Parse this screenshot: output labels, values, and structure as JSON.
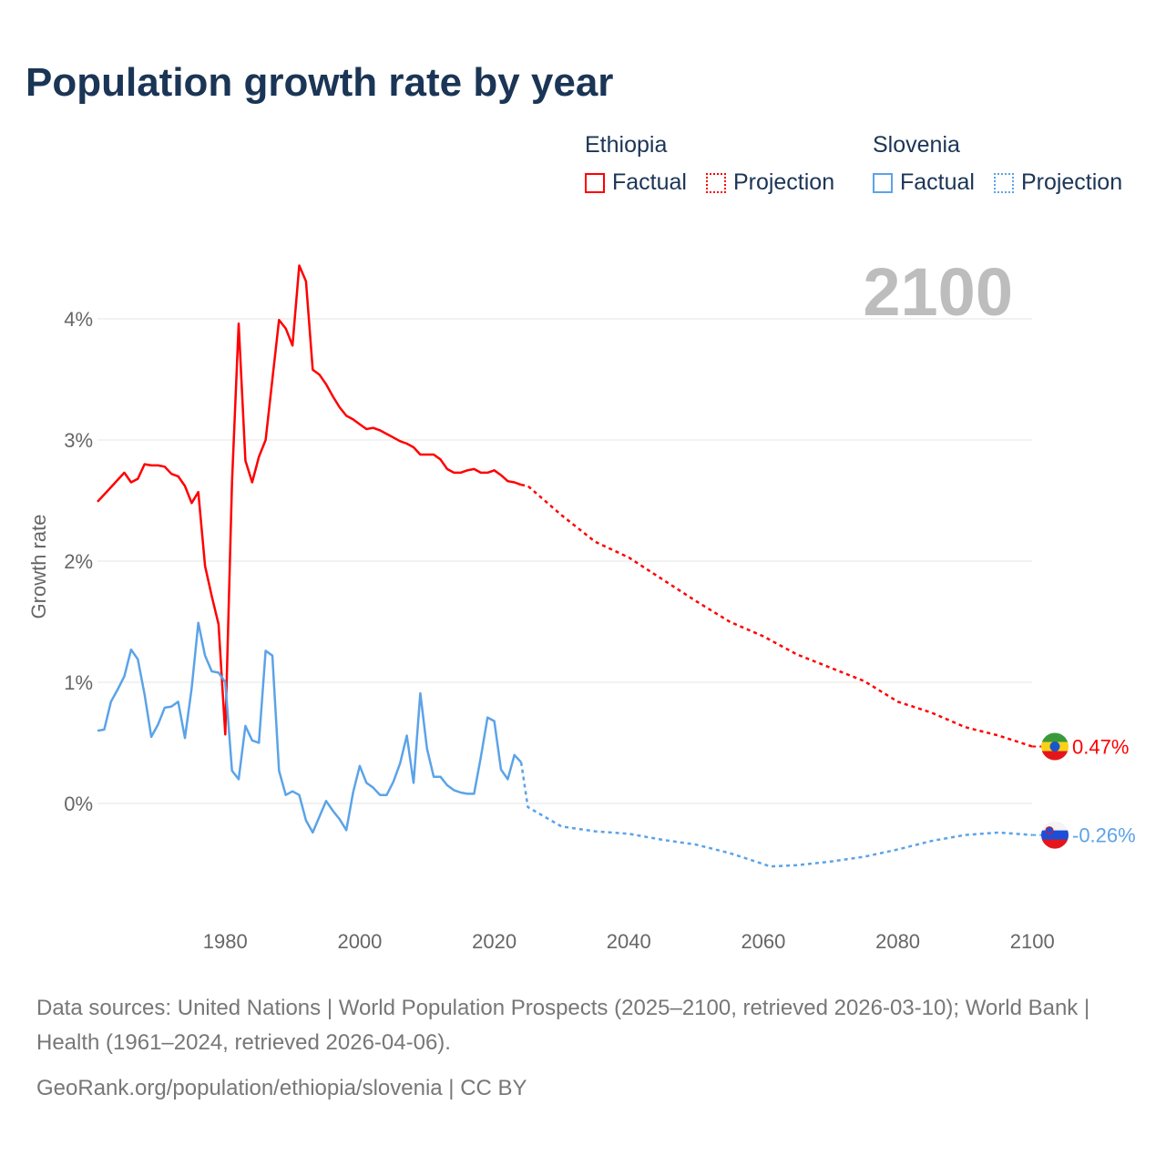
{
  "title": "Population growth rate by year",
  "legend": {
    "groups": [
      {
        "name": "Ethiopia",
        "color": "#ff0000",
        "factual": "Factual",
        "projection": "Projection"
      },
      {
        "name": "Slovenia",
        "color": "#5ba3e8",
        "factual": "Factual",
        "projection": "Projection"
      }
    ]
  },
  "current_year": "2100",
  "footer": {
    "sources": "Data sources: United Nations | World Population Prospects (2025–2100, retrieved 2026-03-10); World Bank | Health (1961–2024, retrieved 2026-04-06).",
    "link": "GeoRank.org/population/ethiopia/slovenia | CC BY"
  },
  "chart_data": {
    "type": "line",
    "title": "Population growth rate by year",
    "xlabel": "",
    "ylabel": "Growth rate",
    "xlim": [
      1961,
      2100
    ],
    "ylim": [
      -0.95,
      4.5
    ],
    "x_ticks": [
      1980,
      2000,
      2020,
      2040,
      2060,
      2080,
      2100
    ],
    "y_ticks": [
      0,
      1,
      2,
      3,
      4
    ],
    "y_tick_labels": [
      "0%",
      "1%",
      "2%",
      "3%",
      "4%"
    ],
    "grid": true,
    "legend_position": "top-right",
    "series": [
      {
        "name": "Ethiopia",
        "color": "#ff0000",
        "end_label": "0.47%",
        "factual": {
          "x": [
            1961,
            1962,
            1963,
            1964,
            1965,
            1966,
            1967,
            1968,
            1969,
            1970,
            1971,
            1972,
            1973,
            1974,
            1975,
            1976,
            1977,
            1978,
            1979,
            1980,
            1981,
            1982,
            1983,
            1984,
            1985,
            1986,
            1987,
            1988,
            1989,
            1990,
            1991,
            1992,
            1993,
            1994,
            1995,
            1996,
            1997,
            1998,
            1999,
            2000,
            2001,
            2002,
            2003,
            2004,
            2005,
            2006,
            2007,
            2008,
            2009,
            2010,
            2011,
            2012,
            2013,
            2014,
            2015,
            2016,
            2017,
            2018,
            2019,
            2020,
            2021,
            2022,
            2023,
            2024
          ],
          "y": [
            2.49,
            2.55,
            2.61,
            2.67,
            2.73,
            2.65,
            2.68,
            2.8,
            2.79,
            2.79,
            2.78,
            2.72,
            2.7,
            2.62,
            2.48,
            2.57,
            1.96,
            1.71,
            1.48,
            0.57,
            2.65,
            3.96,
            2.83,
            2.65,
            2.86,
            3.0,
            3.5,
            3.99,
            3.92,
            3.78,
            4.44,
            4.31,
            3.58,
            3.54,
            3.46,
            3.36,
            3.27,
            3.2,
            3.17,
            3.13,
            3.09,
            3.1,
            3.08,
            3.05,
            3.02,
            2.99,
            2.97,
            2.94,
            2.88,
            2.88,
            2.88,
            2.84,
            2.76,
            2.73,
            2.73,
            2.75,
            2.76,
            2.73,
            2.73,
            2.75,
            2.71,
            2.66,
            2.65,
            2.63
          ]
        },
        "projection": {
          "x": [
            2024,
            2025,
            2030,
            2035,
            2040,
            2045,
            2050,
            2055,
            2060,
            2065,
            2070,
            2075,
            2080,
            2085,
            2090,
            2095,
            2100
          ],
          "y": [
            2.63,
            2.62,
            2.38,
            2.16,
            2.03,
            1.85,
            1.67,
            1.5,
            1.38,
            1.23,
            1.12,
            1.01,
            0.84,
            0.75,
            0.63,
            0.56,
            0.47
          ]
        }
      },
      {
        "name": "Slovenia",
        "color": "#5ba3e8",
        "end_label": "-0.26%",
        "factual": {
          "x": [
            1961,
            1962,
            1963,
            1964,
            1965,
            1966,
            1967,
            1968,
            1969,
            1970,
            1971,
            1972,
            1973,
            1974,
            1975,
            1976,
            1977,
            1978,
            1979,
            1980,
            1981,
            1982,
            1983,
            1984,
            1985,
            1986,
            1987,
            1988,
            1989,
            1990,
            1991,
            1992,
            1993,
            1994,
            1995,
            1996,
            1997,
            1998,
            1999,
            2000,
            2001,
            2002,
            2003,
            2004,
            2005,
            2006,
            2007,
            2008,
            2009,
            2010,
            2011,
            2012,
            2013,
            2014,
            2015,
            2016,
            2017,
            2018,
            2019,
            2020,
            2021,
            2022,
            2023,
            2024
          ],
          "y": [
            0.6,
            0.61,
            0.84,
            0.94,
            1.05,
            1.27,
            1.19,
            0.9,
            0.55,
            0.65,
            0.79,
            0.8,
            0.84,
            0.54,
            0.95,
            1.49,
            1.22,
            1.09,
            1.08,
            1.0,
            0.27,
            0.2,
            0.64,
            0.52,
            0.5,
            1.26,
            1.22,
            0.27,
            0.07,
            0.1,
            0.07,
            -0.14,
            -0.24,
            -0.11,
            0.02,
            -0.06,
            -0.13,
            -0.22,
            0.09,
            0.31,
            0.17,
            0.13,
            0.07,
            0.07,
            0.18,
            0.33,
            0.56,
            0.17,
            0.91,
            0.45,
            0.22,
            0.22,
            0.15,
            0.11,
            0.09,
            0.08,
            0.08,
            0.38,
            0.71,
            0.68,
            0.28,
            0.2,
            0.4,
            0.34
          ]
        },
        "projection": {
          "x": [
            2024,
            2025,
            2030,
            2035,
            2040,
            2045,
            2050,
            2055,
            2060,
            2061,
            2065,
            2070,
            2075,
            2080,
            2085,
            2090,
            2095,
            2100
          ],
          "y": [
            0.34,
            -0.03,
            -0.19,
            -0.23,
            -0.25,
            -0.3,
            -0.34,
            -0.41,
            -0.5,
            -0.52,
            -0.51,
            -0.48,
            -0.44,
            -0.38,
            -0.31,
            -0.26,
            -0.24,
            -0.26
          ]
        }
      }
    ]
  }
}
